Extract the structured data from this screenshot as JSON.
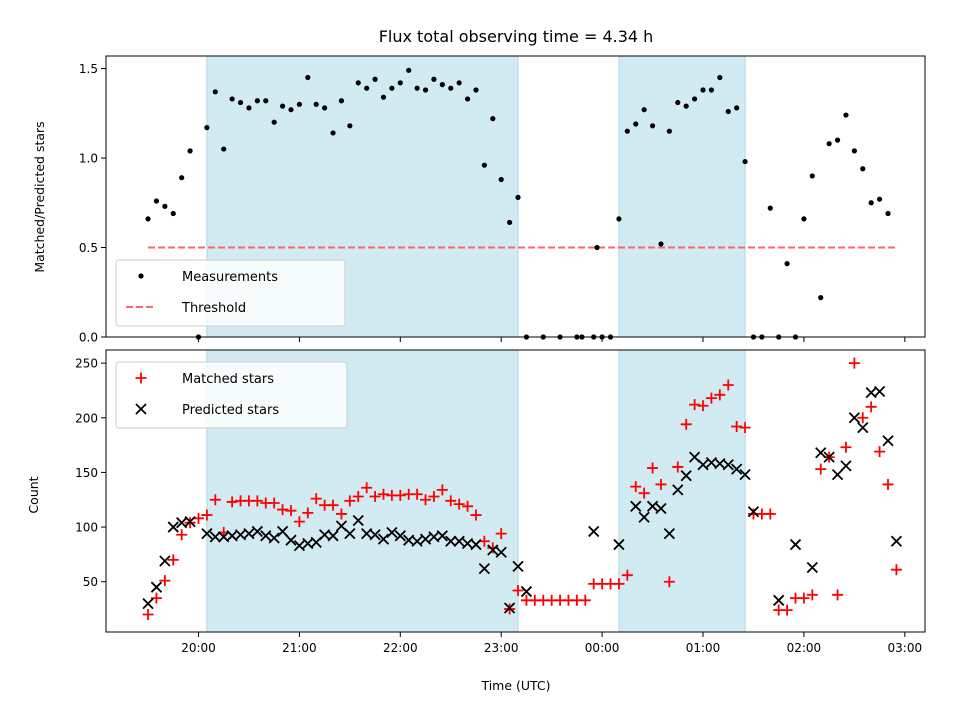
{
  "title": "Flux total observing time = 4.34 h",
  "chart_data": [
    {
      "type": "scatter",
      "name": "ratio-panel",
      "ylabel": "Matched/Predicted stars",
      "ylim": [
        0,
        1.57
      ],
      "yticks": [
        "0.0",
        "0.5",
        "1.0",
        "1.5"
      ],
      "ytick_values": [
        0,
        0.5,
        1.0,
        1.5
      ],
      "legend": [
        "Measurements",
        "Threshold"
      ],
      "legend_placement": "lower-left",
      "threshold": 0.5,
      "observing_windows": [
        [
          "20:05",
          "23:10"
        ],
        [
          "00:10",
          "01:25"
        ]
      ],
      "series": [
        {
          "name": "Measurements",
          "marker": "dot",
          "color": "#000000",
          "points": [
            [
              "19:30",
              0.66
            ],
            [
              "19:35",
              0.76
            ],
            [
              "19:40",
              0.73
            ],
            [
              "19:45",
              0.69
            ],
            [
              "19:50",
              0.89
            ],
            [
              "19:55",
              1.04
            ],
            [
              "20:00",
              0.0
            ],
            [
              "20:05",
              1.17
            ],
            [
              "20:10",
              1.37
            ],
            [
              "20:15",
              1.05
            ],
            [
              "20:20",
              1.33
            ],
            [
              "20:25",
              1.31
            ],
            [
              "20:30",
              1.28
            ],
            [
              "20:35",
              1.32
            ],
            [
              "20:40",
              1.32
            ],
            [
              "20:45",
              1.2
            ],
            [
              "20:50",
              1.29
            ],
            [
              "20:55",
              1.27
            ],
            [
              "21:00",
              1.3
            ],
            [
              "21:05",
              1.45
            ],
            [
              "21:10",
              1.3
            ],
            [
              "21:15",
              1.28
            ],
            [
              "21:20",
              1.14
            ],
            [
              "21:25",
              1.32
            ],
            [
              "21:30",
              1.18
            ],
            [
              "21:35",
              1.42
            ],
            [
              "21:40",
              1.39
            ],
            [
              "21:45",
              1.44
            ],
            [
              "21:50",
              1.34
            ],
            [
              "21:55",
              1.39
            ],
            [
              "22:00",
              1.42
            ],
            [
              "22:05",
              1.49
            ],
            [
              "22:10",
              1.39
            ],
            [
              "22:15",
              1.38
            ],
            [
              "22:20",
              1.44
            ],
            [
              "22:25",
              1.41
            ],
            [
              "22:30",
              1.39
            ],
            [
              "22:35",
              1.42
            ],
            [
              "22:40",
              1.33
            ],
            [
              "22:45",
              1.38
            ],
            [
              "22:50",
              0.96
            ],
            [
              "22:55",
              1.22
            ],
            [
              "23:00",
              0.88
            ],
            [
              "23:05",
              0.64
            ],
            [
              "23:10",
              0.78
            ],
            [
              "23:15",
              0.0
            ],
            [
              "23:25",
              0.0
            ],
            [
              "23:35",
              0.0
            ],
            [
              "23:45",
              0.0
            ],
            [
              "00:00",
              0.0
            ],
            [
              "00:05",
              0.0
            ],
            [
              "23:55",
              0.0
            ],
            [
              "23:48",
              0.0
            ],
            [
              "23:57",
              0.5
            ],
            [
              "00:10",
              0.66
            ],
            [
              "00:15",
              1.15
            ],
            [
              "00:20",
              1.19
            ],
            [
              "00:25",
              1.27
            ],
            [
              "00:30",
              1.18
            ],
            [
              "00:35",
              0.52
            ],
            [
              "00:40",
              1.15
            ],
            [
              "00:45",
              1.31
            ],
            [
              "00:50",
              1.29
            ],
            [
              "00:55",
              1.33
            ],
            [
              "01:00",
              1.38
            ],
            [
              "01:05",
              1.38
            ],
            [
              "01:10",
              1.45
            ],
            [
              "01:15",
              1.26
            ],
            [
              "01:20",
              1.28
            ],
            [
              "01:25",
              0.98
            ],
            [
              "01:30",
              0.0
            ],
            [
              "01:35",
              0.0
            ],
            [
              "01:40",
              0.72
            ],
            [
              "01:45",
              0.0
            ],
            [
              "01:50",
              0.41
            ],
            [
              "01:55",
              0.0
            ],
            [
              "02:00",
              0.66
            ],
            [
              "02:05",
              0.9
            ],
            [
              "02:10",
              0.22
            ],
            [
              "02:15",
              1.08
            ],
            [
              "02:20",
              1.1
            ],
            [
              "02:25",
              1.24
            ],
            [
              "02:30",
              1.04
            ],
            [
              "02:35",
              0.94
            ],
            [
              "02:40",
              0.75
            ],
            [
              "02:45",
              0.77
            ],
            [
              "02:50",
              0.69
            ]
          ]
        }
      ]
    },
    {
      "type": "scatter",
      "name": "count-panel",
      "ylabel": "Count",
      "xlabel": "Time (UTC)",
      "ylim": [
        4,
        262
      ],
      "yticks": [
        "50",
        "100",
        "150",
        "200",
        "250"
      ],
      "ytick_values": [
        50,
        100,
        150,
        200,
        250
      ],
      "xticks": [
        "20:00",
        "21:00",
        "22:00",
        "23:00",
        "00:00",
        "01:00",
        "02:00",
        "03:00"
      ],
      "legend": [
        "Matched stars",
        "Predicted stars"
      ],
      "legend_placement": "upper-left",
      "observing_windows": [
        [
          "20:05",
          "23:10"
        ],
        [
          "00:10",
          "01:25"
        ]
      ],
      "series": [
        {
          "name": "Matched stars",
          "marker": "plus",
          "color": "#ff0000",
          "points": [
            [
              "19:30",
              20
            ],
            [
              "19:35",
              35
            ],
            [
              "19:40",
              51
            ],
            [
              "19:45",
              70
            ],
            [
              "19:50",
              93
            ],
            [
              "19:55",
              104
            ],
            [
              "20:00",
              108
            ],
            [
              "20:05",
              111
            ],
            [
              "20:10",
              125
            ],
            [
              "20:15",
              95
            ],
            [
              "20:20",
              123
            ],
            [
              "20:25",
              124
            ],
            [
              "20:30",
              124
            ],
            [
              "20:35",
              124
            ],
            [
              "20:40",
              122
            ],
            [
              "20:45",
              122
            ],
            [
              "20:50",
              116
            ],
            [
              "20:55",
              115
            ],
            [
              "21:00",
              105
            ],
            [
              "21:05",
              113
            ],
            [
              "21:10",
              126
            ],
            [
              "21:15",
              120
            ],
            [
              "21:20",
              120
            ],
            [
              "21:25",
              112
            ],
            [
              "21:30",
              124
            ],
            [
              "21:35",
              128
            ],
            [
              "21:40",
              136
            ],
            [
              "21:45",
              128
            ],
            [
              "21:50",
              130
            ],
            [
              "21:55",
              129
            ],
            [
              "22:00",
              129
            ],
            [
              "22:05",
              130
            ],
            [
              "22:10",
              130
            ],
            [
              "22:15",
              125
            ],
            [
              "22:20",
              128
            ],
            [
              "22:25",
              134
            ],
            [
              "22:30",
              124
            ],
            [
              "22:35",
              121
            ],
            [
              "22:40",
              119
            ],
            [
              "22:45",
              111
            ],
            [
              "22:50",
              87
            ],
            [
              "22:55",
              81
            ],
            [
              "23:00",
              94
            ],
            [
              "23:05",
              25
            ],
            [
              "23:10",
              42
            ],
            [
              "23:15",
              33
            ],
            [
              "23:20",
              33
            ],
            [
              "23:25",
              33
            ],
            [
              "23:30",
              33
            ],
            [
              "23:35",
              33
            ],
            [
              "23:40",
              33
            ],
            [
              "23:45",
              33
            ],
            [
              "23:50",
              33
            ],
            [
              "23:55",
              48
            ],
            [
              "00:00",
              48
            ],
            [
              "00:05",
              48
            ],
            [
              "00:10",
              48
            ],
            [
              "00:15",
              56
            ],
            [
              "00:20",
              137
            ],
            [
              "00:25",
              131
            ],
            [
              "00:30",
              154
            ],
            [
              "00:35",
              139
            ],
            [
              "00:40",
              50
            ],
            [
              "00:45",
              155
            ],
            [
              "00:50",
              194
            ],
            [
              "00:55",
              212
            ],
            [
              "01:00",
              211
            ],
            [
              "01:05",
              218
            ],
            [
              "01:10",
              221
            ],
            [
              "01:15",
              230
            ],
            [
              "01:20",
              192
            ],
            [
              "01:25",
              191
            ],
            [
              "01:30",
              112
            ],
            [
              "01:35",
              112
            ],
            [
              "01:40",
              112
            ],
            [
              "01:45",
              24
            ],
            [
              "01:50",
              24
            ],
            [
              "01:55",
              35
            ],
            [
              "02:00",
              35
            ],
            [
              "02:05",
              38
            ],
            [
              "02:10",
              153
            ],
            [
              "02:15",
              164
            ],
            [
              "02:20",
              38
            ],
            [
              "02:25",
              173
            ],
            [
              "02:30",
              250
            ],
            [
              "02:35",
              200
            ],
            [
              "02:40",
              210
            ],
            [
              "02:45",
              169
            ],
            [
              "02:50",
              139
            ],
            [
              "02:55",
              61
            ]
          ]
        },
        {
          "name": "Predicted stars",
          "marker": "x",
          "color": "#000000",
          "points": [
            [
              "19:30",
              30
            ],
            [
              "19:35",
              45
            ],
            [
              "19:40",
              69
            ],
            [
              "19:45",
              100
            ],
            [
              "19:50",
              104
            ],
            [
              "19:55",
              105
            ],
            [
              "20:05",
              94
            ],
            [
              "20:10",
              91
            ],
            [
              "20:15",
              91
            ],
            [
              "20:20",
              92
            ],
            [
              "20:25",
              93
            ],
            [
              "20:30",
              94
            ],
            [
              "20:35",
              96
            ],
            [
              "20:40",
              92
            ],
            [
              "20:45",
              90
            ],
            [
              "20:50",
              96
            ],
            [
              "20:55",
              88
            ],
            [
              "21:00",
              83
            ],
            [
              "21:05",
              85
            ],
            [
              "21:10",
              86
            ],
            [
              "21:15",
              93
            ],
            [
              "21:20",
              92
            ],
            [
              "21:25",
              101
            ],
            [
              "21:30",
              94
            ],
            [
              "21:35",
              106
            ],
            [
              "21:40",
              94
            ],
            [
              "21:45",
              93
            ],
            [
              "21:50",
              89
            ],
            [
              "21:55",
              95
            ],
            [
              "22:00",
              92
            ],
            [
              "22:05",
              88
            ],
            [
              "22:10",
              87
            ],
            [
              "22:15",
              89
            ],
            [
              "22:20",
              91
            ],
            [
              "22:25",
              92
            ],
            [
              "22:30",
              87
            ],
            [
              "22:35",
              87
            ],
            [
              "22:40",
              85
            ],
            [
              "22:45",
              84
            ],
            [
              "22:50",
              62
            ],
            [
              "22:55",
              79
            ],
            [
              "23:00",
              77
            ],
            [
              "23:05",
              26
            ],
            [
              "23:10",
              64
            ],
            [
              "23:15",
              41
            ],
            [
              "23:55",
              96
            ],
            [
              "00:10",
              84
            ],
            [
              "00:20",
              119
            ],
            [
              "00:25",
              109
            ],
            [
              "00:30",
              119
            ],
            [
              "00:35",
              117
            ],
            [
              "00:40",
              94
            ],
            [
              "00:45",
              134
            ],
            [
              "00:50",
              147
            ],
            [
              "00:55",
              164
            ],
            [
              "01:00",
              157
            ],
            [
              "01:05",
              159
            ],
            [
              "01:10",
              158
            ],
            [
              "01:15",
              157
            ],
            [
              "01:20",
              153
            ],
            [
              "01:25",
              148
            ],
            [
              "01:30",
              114
            ],
            [
              "01:45",
              33
            ],
            [
              "01:55",
              84
            ],
            [
              "02:05",
              63
            ],
            [
              "02:10",
              168
            ],
            [
              "02:15",
              164
            ],
            [
              "02:20",
              148
            ],
            [
              "02:25",
              156
            ],
            [
              "02:30",
              200
            ],
            [
              "02:35",
              191
            ],
            [
              "02:40",
              223
            ],
            [
              "02:45",
              224
            ],
            [
              "02:50",
              179
            ],
            [
              "02:55",
              87
            ]
          ]
        }
      ]
    }
  ],
  "colors": {
    "window_fill": "#add8e6",
    "threshold": "#ff6666",
    "matched": "#ff0000",
    "predicted": "#000000",
    "measurement": "#000000"
  }
}
